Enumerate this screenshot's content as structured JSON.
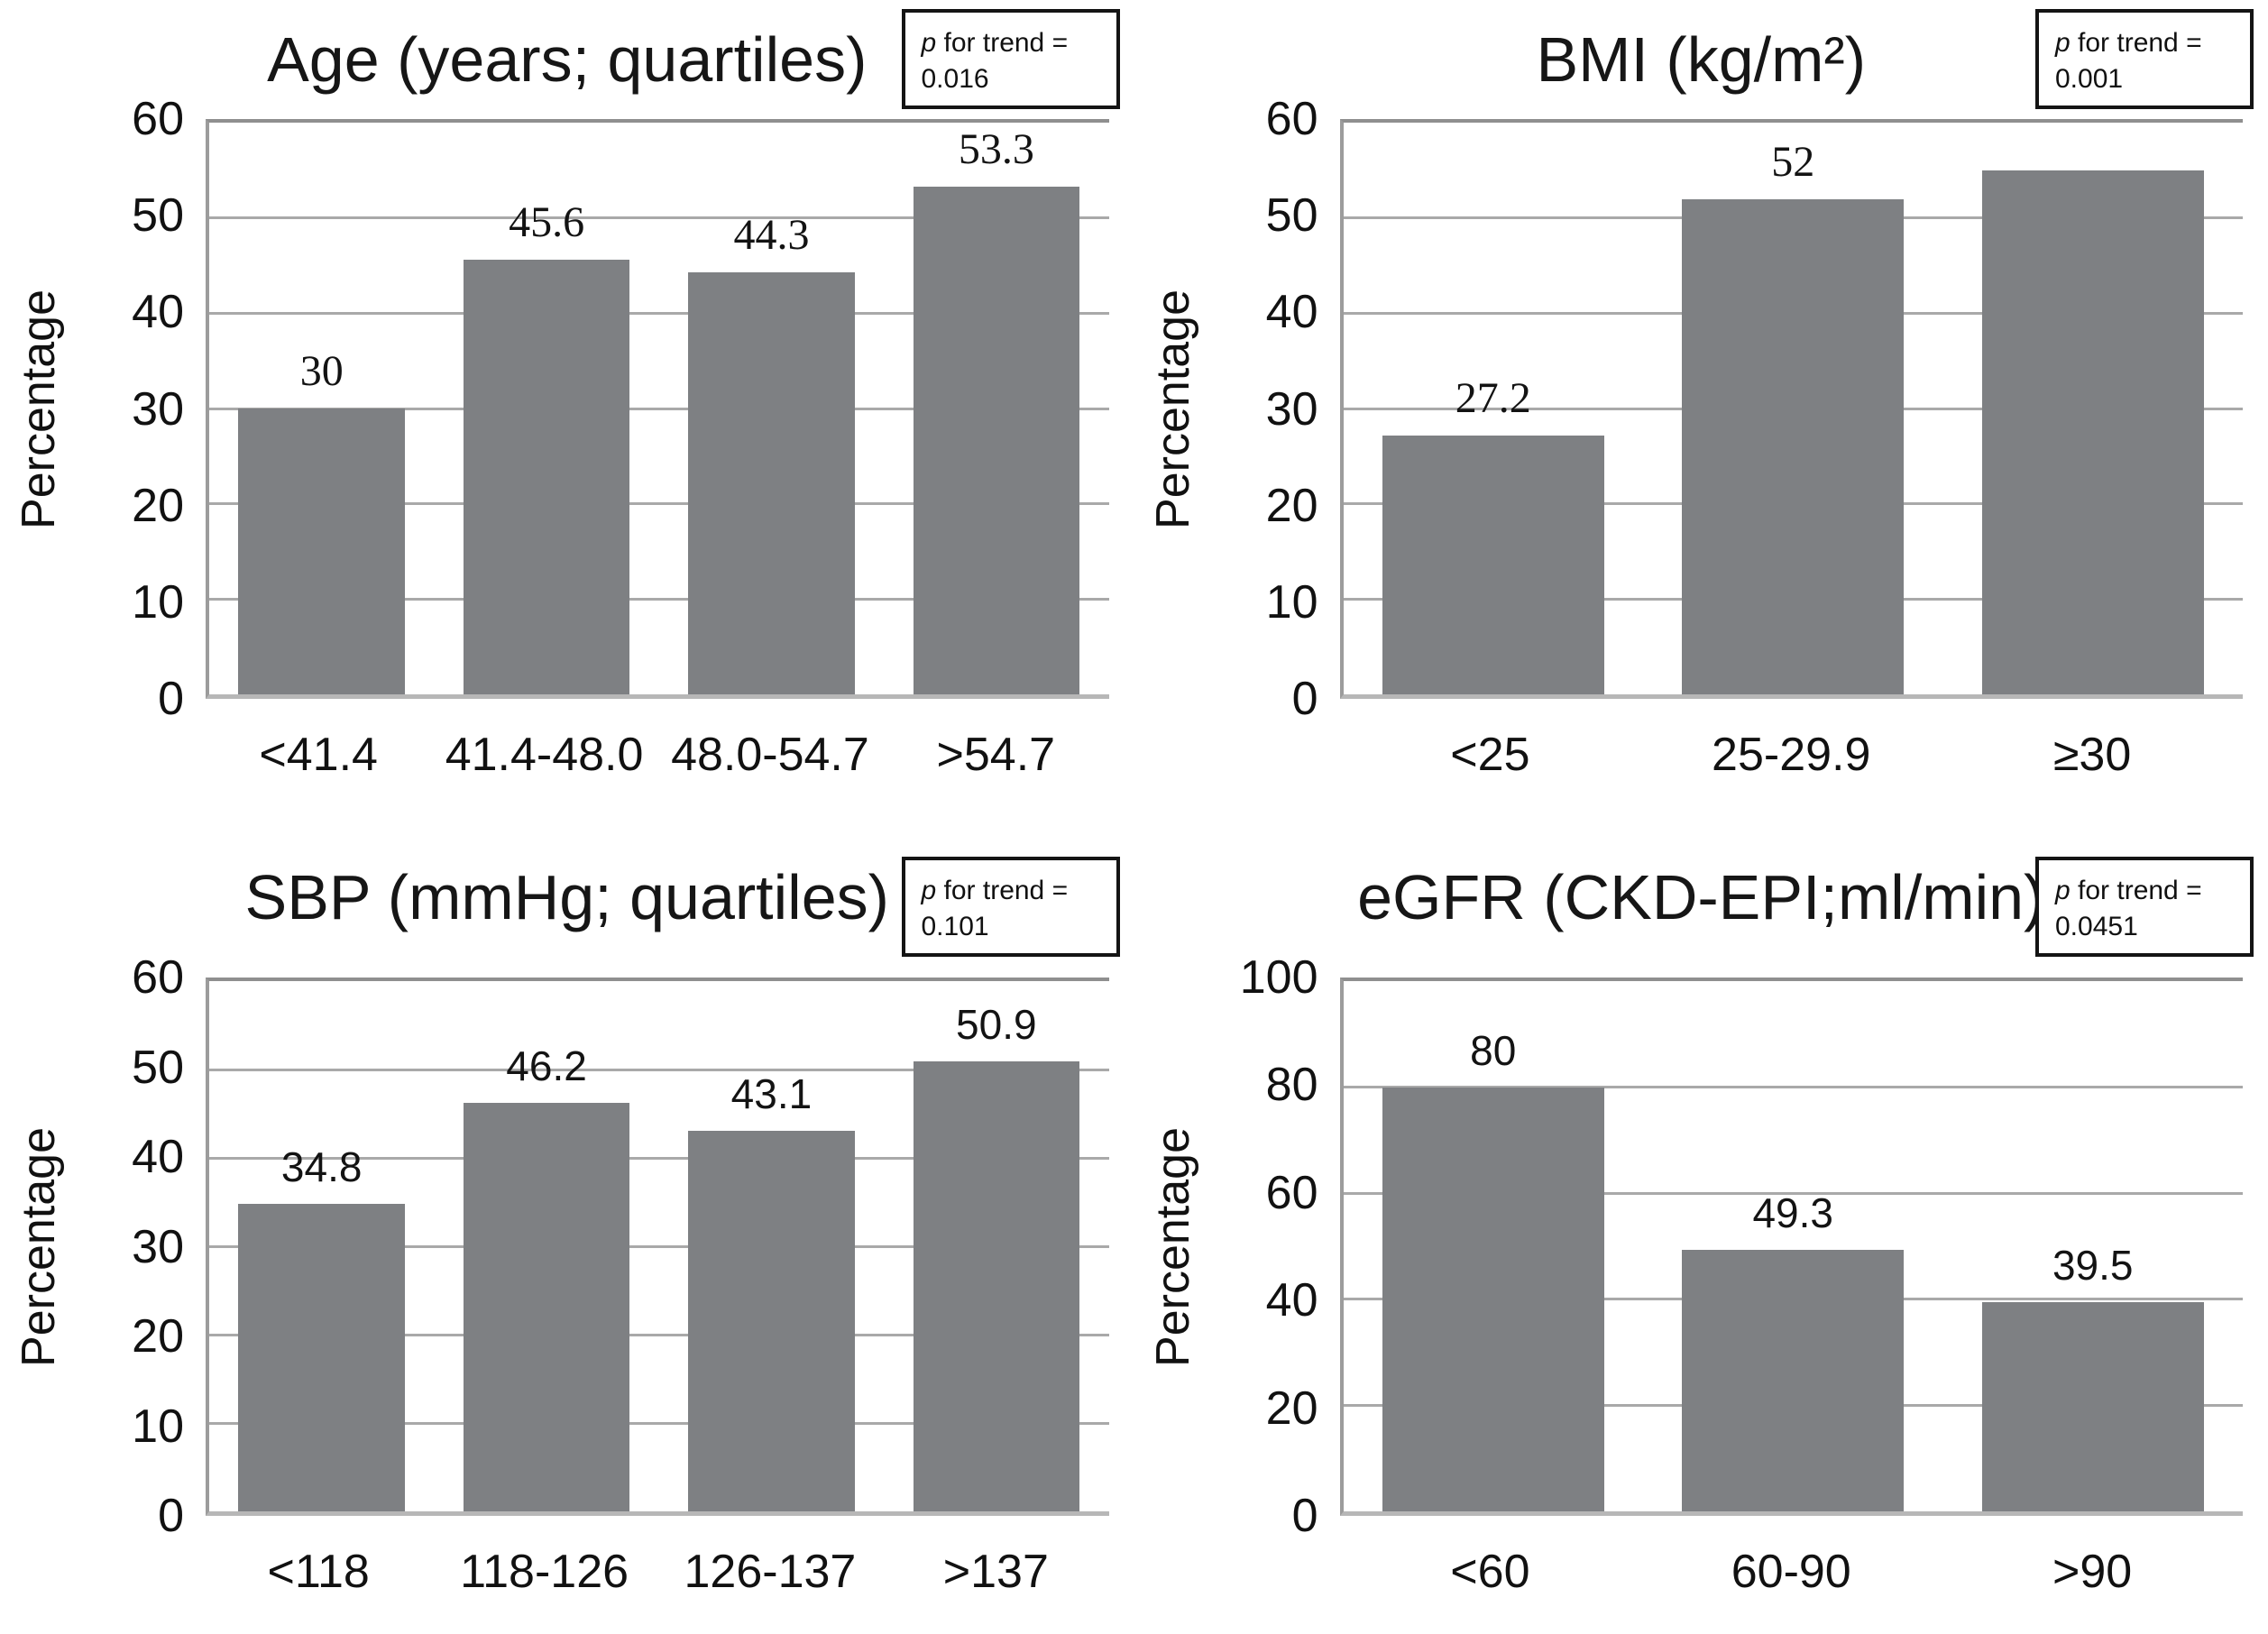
{
  "figure": {
    "background": "#ffffff",
    "bar_color": "#7e8083",
    "grid_color": "#a9a9a9",
    "axis_color": "#9c9c9c",
    "p_box_border_color": "#141414",
    "text_color": "#111111"
  },
  "chart_data": [
    {
      "type": "bar",
      "position": "top-left",
      "title": "Age (years; quartiles)",
      "p_symbol": "p",
      "p_label": " for trend =",
      "p_value": "0.016",
      "ylabel": "Percentage",
      "ylim": [
        0,
        60
      ],
      "y_ticks": [
        60,
        50,
        40,
        30,
        20,
        10,
        0
      ],
      "grid": "horizontal",
      "legend": "none",
      "categories": [
        "<41.4",
        "41.4-48.0",
        "48.0-54.7",
        ">54.7"
      ],
      "values": [
        30,
        45.6,
        44.3,
        53.3
      ],
      "bar_labels": [
        "30",
        "45.6",
        "44.3",
        "53.3"
      ],
      "bar_label_font": "serif"
    },
    {
      "type": "bar",
      "position": "top-right",
      "title": "BMI (kg/m²)",
      "p_symbol": "p",
      "p_label": " for trend =",
      "p_value": "0.001",
      "ylabel": "Percentage",
      "ylim": [
        0,
        60
      ],
      "y_ticks": [
        60,
        50,
        40,
        30,
        20,
        10,
        0
      ],
      "grid": "horizontal",
      "legend": "none",
      "categories": [
        "<25",
        "25-29.9",
        "≥30"
      ],
      "values": [
        27.2,
        52,
        55
      ],
      "bar_labels": [
        "27.2",
        "52",
        ""
      ],
      "bar_label_font": "serif"
    },
    {
      "type": "bar",
      "position": "bottom-left",
      "title": "SBP (mmHg; quartiles)",
      "p_symbol": "p",
      "p_label": " for trend =",
      "p_value": "0.101",
      "ylabel": "Percentage",
      "ylim": [
        0,
        60
      ],
      "y_ticks": [
        60,
        50,
        40,
        30,
        20,
        10,
        0
      ],
      "grid": "horizontal",
      "legend": "none",
      "categories": [
        "<118",
        "118-126",
        "126-137",
        ">137"
      ],
      "values": [
        34.8,
        46.2,
        43.1,
        50.9
      ],
      "bar_labels": [
        "34.8",
        "46.2",
        "43.1",
        "50.9"
      ],
      "bar_label_font": "sans"
    },
    {
      "type": "bar",
      "position": "bottom-right",
      "title": "eGFR (CKD-EPI;ml/min)",
      "p_symbol": "p",
      "p_label": " for trend =",
      "p_value": "0.0451",
      "ylabel": "Percentage",
      "ylim": [
        0,
        100
      ],
      "y_ticks": [
        100,
        80,
        60,
        40,
        20,
        0
      ],
      "grid": "horizontal",
      "legend": "none",
      "categories": [
        "<60",
        "60-90",
        ">90"
      ],
      "values": [
        80,
        49.3,
        39.5
      ],
      "bar_labels": [
        "80",
        "49.3",
        "39.5"
      ],
      "bar_label_font": "sans"
    }
  ]
}
